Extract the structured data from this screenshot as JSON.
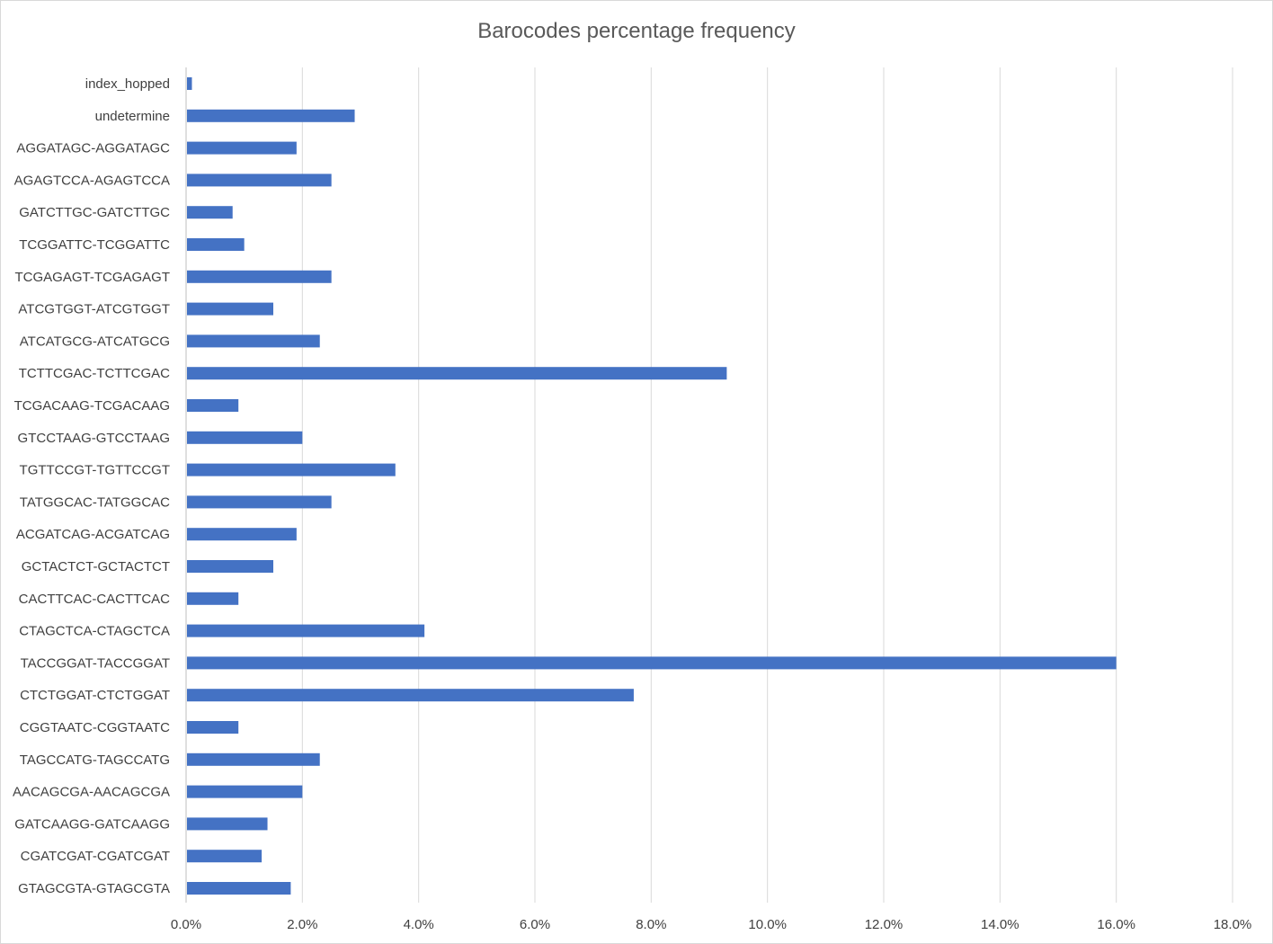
{
  "chart_data": {
    "type": "bar",
    "orientation": "horizontal",
    "title": "Barocodes percentage frequency",
    "xlabel": "",
    "ylabel": "",
    "categories": [
      "index_hopped",
      "undetermine",
      "AGGATAGC-AGGATAGC",
      "AGAGTCCA-AGAGTCCA",
      "GATCTTGC-GATCTTGC",
      "TCGGATTC-TCGGATTC",
      "TCGAGAGT-TCGAGAGT",
      "ATCGTGGT-ATCGTGGT",
      "ATCATGCG-ATCATGCG",
      "TCTTCGAC-TCTTCGAC",
      "TCGACAAG-TCGACAAG",
      "GTCCTAAG-GTCCTAAG",
      "TGTTCCGT-TGTTCCGT",
      "TATGGCAC-TATGGCAC",
      "ACGATCAG-ACGATCAG",
      "GCTACTCT-GCTACTCT",
      "CACTTCAC-CACTTCAC",
      "CTAGCTCA-CTAGCTCA",
      "TACCGGAT-TACCGGAT",
      "CTCTGGAT-CTCTGGAT",
      "CGGTAATC-CGGTAATC",
      "TAGCCATG-TAGCCATG",
      "AACAGCGA-AACAGCGA",
      "GATCAAGG-GATCAAGG",
      "CGATCGAT-CGATCGAT",
      "GTAGCGTA-GTAGCGTA"
    ],
    "values": [
      0.1,
      2.9,
      1.9,
      2.5,
      0.8,
      1.0,
      2.5,
      1.5,
      2.3,
      9.3,
      0.9,
      2.0,
      3.6,
      2.5,
      1.9,
      1.5,
      0.9,
      4.1,
      16.0,
      7.7,
      0.9,
      2.3,
      2.0,
      1.4,
      1.3,
      1.8
    ],
    "xlim": [
      0,
      18
    ],
    "xticks": [
      0,
      2,
      4,
      6,
      8,
      10,
      12,
      14,
      16,
      18
    ],
    "xtick_labels": [
      "0.0%",
      "2.0%",
      "4.0%",
      "6.0%",
      "8.0%",
      "10.0%",
      "12.0%",
      "14.0%",
      "16.0%",
      "18.0%"
    ],
    "grid": true,
    "legend": "none",
    "bar_color": "#4472c4",
    "grid_color": "#d9d9d9",
    "text_color": "#404040"
  }
}
